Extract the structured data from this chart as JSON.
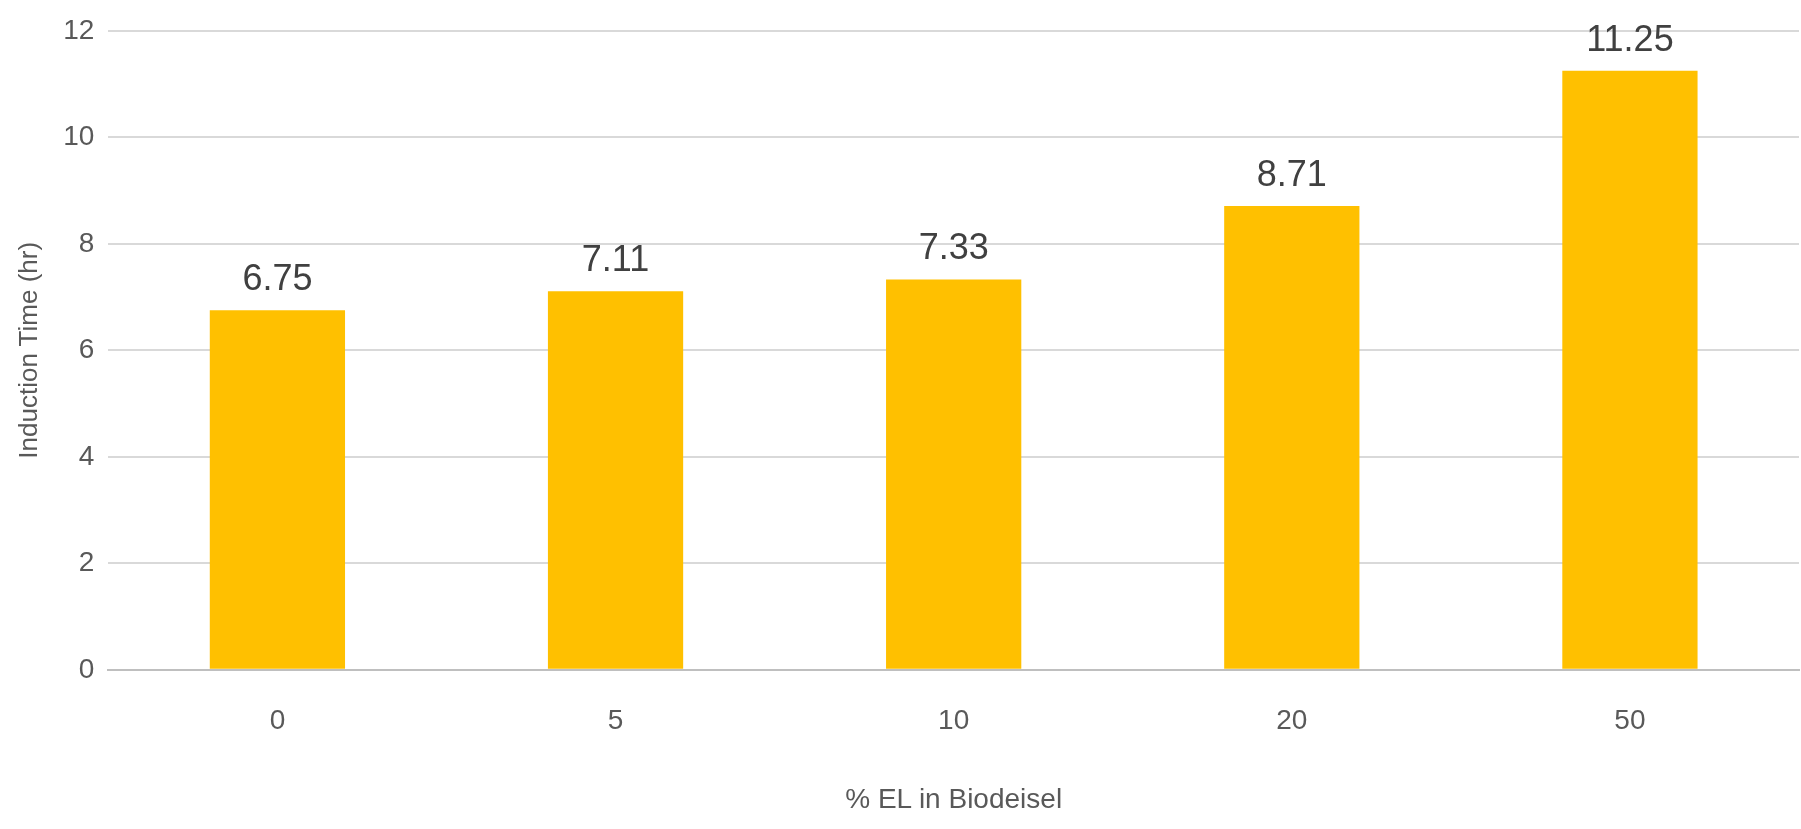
{
  "chart_data": {
    "type": "bar",
    "xlabel": "% EL in Biodeisel",
    "ylabel": "Induction Time (hr)",
    "categories": [
      "0",
      "5",
      "10",
      "20",
      "50"
    ],
    "values": [
      6.75,
      7.11,
      7.33,
      8.71,
      11.25
    ],
    "color": "#ffc000",
    "ylim": [
      0,
      12
    ],
    "yticks": [
      0,
      2,
      4,
      6,
      8,
      10,
      12
    ],
    "grid": "y",
    "data_labels": true,
    "legend": false
  }
}
